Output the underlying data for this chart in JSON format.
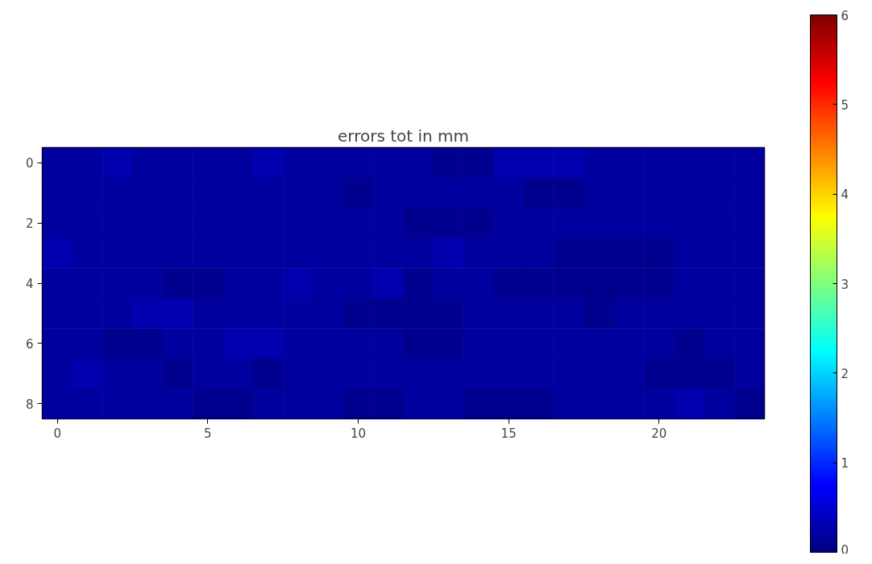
{
  "chart_data": {
    "type": "heatmap",
    "title": "errors tot in mm",
    "categories": [
      "0",
      null,
      null,
      null,
      null,
      "5",
      null,
      null,
      null,
      null,
      "10",
      null,
      null,
      null,
      null,
      "15",
      null,
      null,
      null,
      null,
      "20",
      null,
      null,
      null
    ],
    "y_categories": [
      "0",
      null,
      "2",
      null,
      "4",
      null,
      "6",
      null,
      "8"
    ],
    "cells": [
      [
        0.2,
        0.2,
        0.3,
        0.2,
        0.2,
        0.2,
        0.2,
        0.3,
        0.2,
        0.2,
        0.2,
        0.2,
        0.2,
        0.1,
        0.1,
        0.3,
        0.3,
        0.3,
        0.2,
        0.2,
        0.2,
        0.2,
        0.2,
        0.2
      ],
      [
        0.2,
        0.2,
        0.2,
        0.2,
        0.2,
        0.2,
        0.2,
        0.2,
        0.2,
        0.2,
        0.1,
        0.2,
        0.2,
        0.2,
        0.2,
        0.2,
        0.1,
        0.1,
        0.2,
        0.2,
        0.2,
        0.2,
        0.2,
        0.2
      ],
      [
        0.2,
        0.2,
        0.2,
        0.2,
        0.2,
        0.2,
        0.2,
        0.2,
        0.2,
        0.2,
        0.2,
        0.2,
        0.1,
        0.1,
        0.1,
        0.2,
        0.2,
        0.2,
        0.2,
        0.2,
        0.2,
        0.2,
        0.2,
        0.2
      ],
      [
        0.3,
        0.2,
        0.2,
        0.2,
        0.2,
        0.2,
        0.2,
        0.2,
        0.2,
        0.2,
        0.2,
        0.2,
        0.2,
        0.3,
        0.2,
        0.2,
        0.2,
        0.1,
        0.1,
        0.1,
        0.1,
        0.2,
        0.2,
        0.2
      ],
      [
        0.2,
        0.2,
        0.2,
        0.2,
        0.1,
        0.1,
        0.2,
        0.2,
        0.3,
        0.2,
        0.2,
        0.3,
        0.1,
        0.2,
        0.2,
        0.1,
        0.1,
        0.1,
        0.1,
        0.1,
        0.1,
        0.2,
        0.2,
        0.2
      ],
      [
        0.2,
        0.2,
        0.2,
        0.3,
        0.3,
        0.2,
        0.2,
        0.2,
        0.2,
        0.2,
        0.1,
        0.1,
        0.1,
        0.1,
        0.2,
        0.2,
        0.2,
        0.2,
        0.1,
        0.2,
        0.2,
        0.2,
        0.2,
        0.2
      ],
      [
        0.2,
        0.2,
        0.1,
        0.1,
        0.2,
        0.2,
        0.3,
        0.3,
        0.2,
        0.2,
        0.2,
        0.2,
        0.1,
        0.1,
        0.2,
        0.2,
        0.2,
        0.2,
        0.2,
        0.2,
        0.2,
        0.1,
        0.2,
        0.2
      ],
      [
        0.2,
        0.3,
        0.2,
        0.2,
        0.1,
        0.2,
        0.2,
        0.1,
        0.2,
        0.2,
        0.2,
        0.2,
        0.2,
        0.2,
        0.2,
        0.2,
        0.2,
        0.2,
        0.2,
        0.2,
        0.1,
        0.1,
        0.1,
        0.2
      ],
      [
        0.2,
        0.2,
        0.2,
        0.2,
        0.2,
        0.1,
        0.1,
        0.2,
        0.2,
        0.2,
        0.1,
        0.1,
        0.2,
        0.2,
        0.1,
        0.1,
        0.1,
        0.2,
        0.2,
        0.2,
        0.2,
        0.3,
        0.2,
        0.1
      ]
    ],
    "clim": [
      0,
      6
    ],
    "cticks": [
      0,
      1,
      2,
      3,
      4,
      5,
      6
    ]
  }
}
